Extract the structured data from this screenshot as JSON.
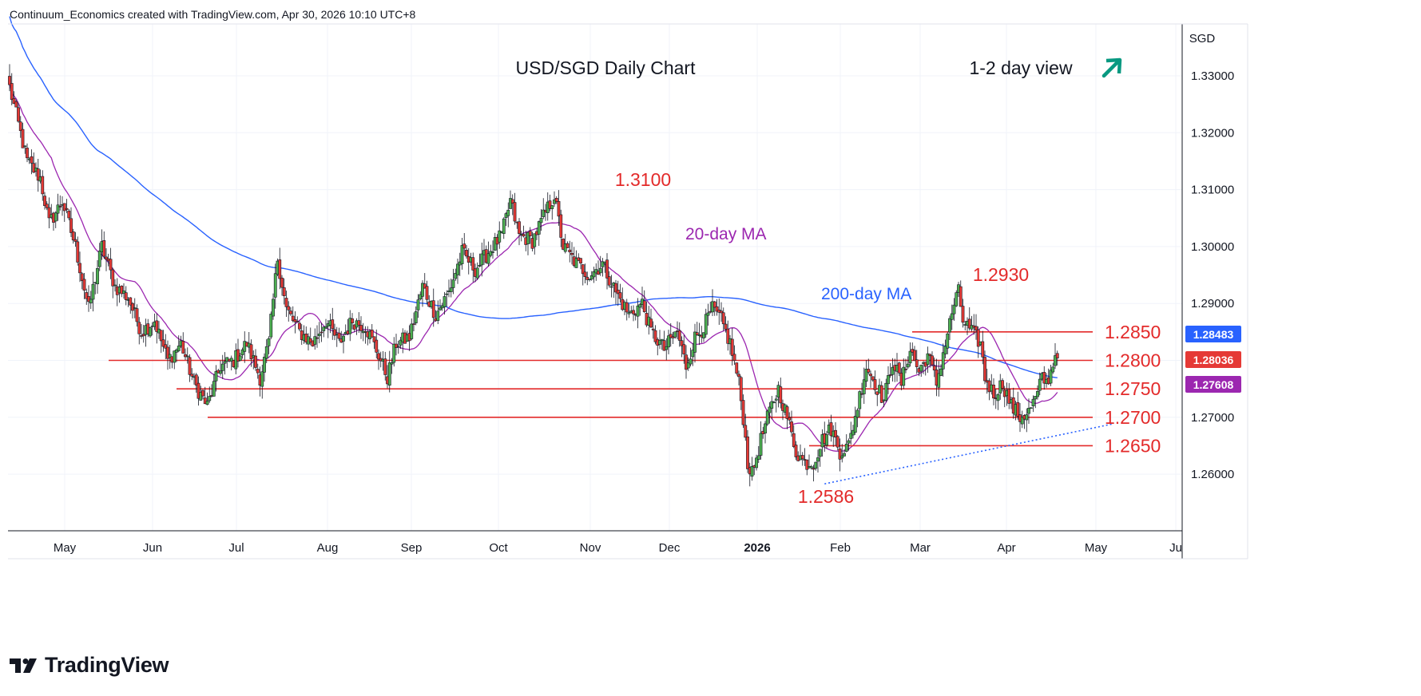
{
  "header": {
    "text": "Continuum_Economics created with TradingView.com, Apr 30, 2026 10:10 UTC+8"
  },
  "footer": {
    "brand": "TradingView"
  },
  "colors": {
    "up": "#4caf50",
    "down": "#e53935",
    "ma20": "#9c27b0",
    "ma200": "#2962ff",
    "level": "#e32a2a",
    "arrow": "#089981"
  },
  "chart_data": {
    "type": "candlestick",
    "title": "USD/SGD Daily Chart",
    "subtitle": "1-2 day view",
    "currency": "SGD",
    "ylim": [
      1.2495,
      1.3395
    ],
    "y_ticks": [
      "1.33000",
      "1.32000",
      "1.31000",
      "1.30000",
      "1.29000",
      "1.28000",
      "1.27000",
      "1.26000"
    ],
    "x_ticks": [
      {
        "label": "May",
        "bold": false
      },
      {
        "label": "Jun",
        "bold": false
      },
      {
        "label": "Jul",
        "bold": false
      },
      {
        "label": "Aug",
        "bold": false
      },
      {
        "label": "Sep",
        "bold": false
      },
      {
        "label": "Oct",
        "bold": false
      },
      {
        "label": "Nov",
        "bold": false
      },
      {
        "label": "Dec",
        "bold": false
      },
      {
        "label": "2026",
        "bold": true
      },
      {
        "label": "Feb",
        "bold": false
      },
      {
        "label": "Mar",
        "bold": false
      },
      {
        "label": "Apr",
        "bold": false
      },
      {
        "label": "May",
        "bold": false
      },
      {
        "label": "Ju",
        "bold": false
      }
    ],
    "levels": [
      {
        "label": "1.2850",
        "value": 1.285
      },
      {
        "label": "1.2800",
        "value": 1.28
      },
      {
        "label": "1.2750",
        "value": 1.275
      },
      {
        "label": "1.2700",
        "value": 1.27
      },
      {
        "label": "1.2650",
        "value": 1.265
      }
    ],
    "annotations": [
      {
        "label": "1.3100",
        "value": 1.31
      },
      {
        "label": "1.2930",
        "value": 1.293
      },
      {
        "label": "1.2586",
        "value": 1.2586
      }
    ],
    "ma_labels": {
      "ma20": "20-day MA",
      "ma200": "200-day MA"
    },
    "price_badges": [
      {
        "label": "1.28483",
        "value": 1.28483,
        "color": "#2962ff"
      },
      {
        "label": "1.28036",
        "value": 1.28036,
        "color": "#e53935"
      },
      {
        "label": "1.27608",
        "value": 1.27608,
        "color": "#9c27b0"
      }
    ],
    "path_nodes": [
      [
        0,
        1.328
      ],
      [
        8,
        1.315
      ],
      [
        14,
        1.312
      ],
      [
        18,
        1.304
      ],
      [
        24,
        1.308
      ],
      [
        30,
        1.3
      ],
      [
        36,
        1.289
      ],
      [
        42,
        1.3
      ],
      [
        48,
        1.293
      ],
      [
        54,
        1.291
      ],
      [
        60,
        1.285
      ],
      [
        66,
        1.287
      ],
      [
        72,
        1.28
      ],
      [
        78,
        1.283
      ],
      [
        84,
        1.276
      ],
      [
        90,
        1.272
      ],
      [
        96,
        1.279
      ],
      [
        102,
        1.28
      ],
      [
        108,
        1.283
      ],
      [
        114,
        1.277
      ],
      [
        118,
        1.283
      ],
      [
        122,
        1.298
      ],
      [
        126,
        1.289
      ],
      [
        132,
        1.285
      ],
      [
        138,
        1.283
      ],
      [
        144,
        1.287
      ],
      [
        150,
        1.283
      ],
      [
        156,
        1.287
      ],
      [
        162,
        1.286
      ],
      [
        168,
        1.281
      ],
      [
        172,
        1.277
      ],
      [
        176,
        1.283
      ],
      [
        182,
        1.284
      ],
      [
        188,
        1.293
      ],
      [
        194,
        1.288
      ],
      [
        200,
        1.292
      ],
      [
        206,
        1.299
      ],
      [
        212,
        1.296
      ],
      [
        218,
        1.299
      ],
      [
        224,
        1.302
      ],
      [
        228,
        1.308
      ],
      [
        232,
        1.302
      ],
      [
        238,
        1.301
      ],
      [
        244,
        1.306
      ],
      [
        248,
        1.309
      ],
      [
        252,
        1.3
      ],
      [
        258,
        1.297
      ],
      [
        264,
        1.295
      ],
      [
        270,
        1.297
      ],
      [
        276,
        1.292
      ],
      [
        282,
        1.288
      ],
      [
        288,
        1.29
      ],
      [
        292,
        1.285
      ],
      [
        298,
        1.282
      ],
      [
        304,
        1.285
      ],
      [
        308,
        1.279
      ],
      [
        312,
        1.284
      ],
      [
        316,
        1.286
      ],
      [
        320,
        1.289
      ],
      [
        324,
        1.287
      ],
      [
        328,
        1.283
      ],
      [
        332,
        1.276
      ],
      [
        334,
        1.27
      ],
      [
        336,
        1.262
      ],
      [
        338,
        1.26
      ],
      [
        342,
        1.266
      ],
      [
        346,
        1.271
      ],
      [
        350,
        1.275
      ],
      [
        354,
        1.27
      ],
      [
        358,
        1.264
      ],
      [
        362,
        1.262
      ],
      [
        366,
        1.262
      ],
      [
        370,
        1.266
      ],
      [
        374,
        1.268
      ],
      [
        378,
        1.264
      ],
      [
        382,
        1.265
      ],
      [
        386,
        1.272
      ],
      [
        390,
        1.279
      ],
      [
        394,
        1.276
      ],
      [
        398,
        1.273
      ],
      [
        402,
        1.28
      ],
      [
        406,
        1.276
      ],
      [
        410,
        1.282
      ],
      [
        414,
        1.278
      ],
      [
        418,
        1.281
      ],
      [
        422,
        1.276
      ],
      [
        426,
        1.283
      ],
      [
        430,
        1.29
      ],
      [
        432,
        1.292
      ],
      [
        434,
        1.287
      ],
      [
        438,
        1.285
      ],
      [
        442,
        1.283
      ],
      [
        444,
        1.277
      ],
      [
        448,
        1.274
      ],
      [
        452,
        1.276
      ],
      [
        456,
        1.272
      ],
      [
        460,
        1.27
      ],
      [
        464,
        1.271
      ],
      [
        468,
        1.274
      ],
      [
        470,
        1.277
      ],
      [
        472,
        1.276
      ],
      [
        474,
        1.278
      ],
      [
        476,
        1.281
      ],
      [
        477,
        1.2804
      ]
    ]
  }
}
